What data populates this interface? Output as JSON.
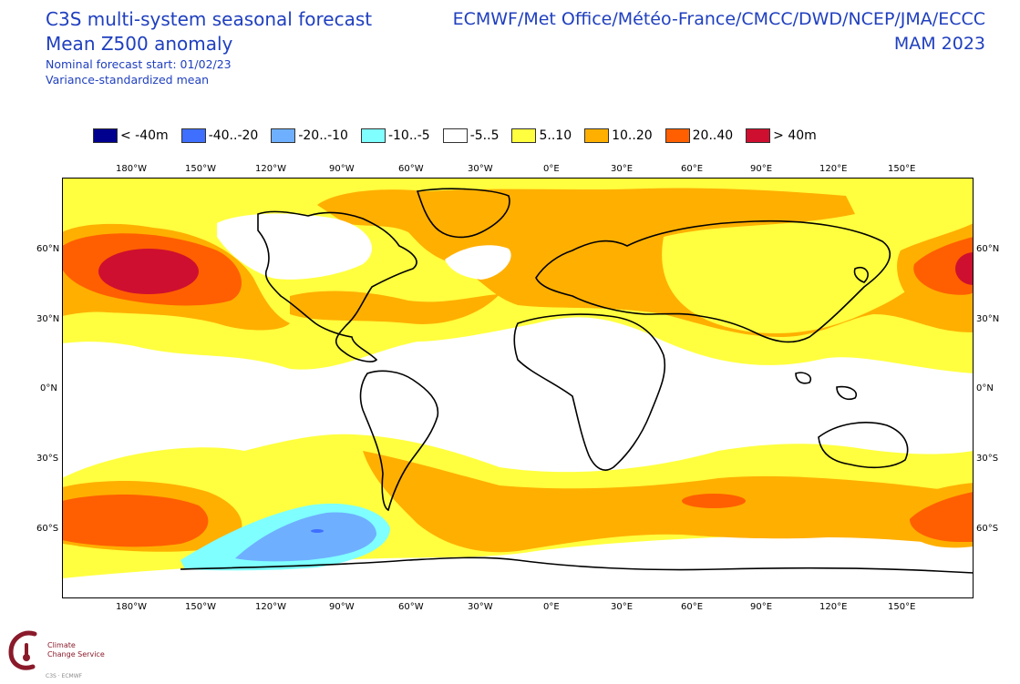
{
  "header": {
    "title_line1": "C3S multi-system seasonal forecast",
    "title_line2": "Mean Z500 anomaly",
    "subtitle_line1": "Nominal forecast start: 01/02/23",
    "subtitle_line2": "Variance-standardized mean",
    "centres": "ECMWF/Met Office/Météo-France/CMCC/DWD/NCEP/JMA/ECCC",
    "season": "MAM 2023"
  },
  "legend": [
    {
      "label": "< -40m",
      "color": "#00008f"
    },
    {
      "label": "-40..-20",
      "color": "#3f6fff"
    },
    {
      "label": "-20..-10",
      "color": "#6fafff"
    },
    {
      "label": "-10..-5",
      "color": "#7fffff"
    },
    {
      "label": "-5..5",
      "color": "#ffffff"
    },
    {
      "label": "5..10",
      "color": "#ffff3f"
    },
    {
      "label": "10..20",
      "color": "#ffaf00"
    },
    {
      "label": "20..40",
      "color": "#ff5f00"
    },
    {
      "label": "> 40m",
      "color": "#cf0f2f"
    }
  ],
  "map": {
    "lon_labels": [
      "180°W",
      "150°W",
      "120°W",
      "90°W",
      "60°W",
      "30°W",
      "0°E",
      "30°E",
      "60°E",
      "90°E",
      "120°E",
      "150°E"
    ],
    "lat_labels": [
      "60°N",
      "30°N",
      "0°N",
      "30°S",
      "60°S"
    ]
  },
  "logo": {
    "line1": "Climate",
    "line2": "Change Service",
    "sub": "C3S · ECMWF"
  }
}
